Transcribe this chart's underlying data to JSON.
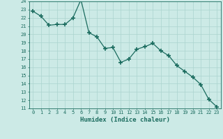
{
  "x": [
    0,
    1,
    2,
    3,
    4,
    5,
    6,
    7,
    8,
    9,
    10,
    11,
    12,
    13,
    14,
    15,
    16,
    17,
    18,
    19,
    20,
    21,
    22,
    23
  ],
  "y": [
    22.8,
    22.2,
    21.1,
    21.2,
    21.2,
    22.0,
    24.2,
    20.2,
    19.7,
    18.3,
    18.4,
    16.6,
    17.0,
    18.2,
    18.5,
    18.9,
    18.0,
    17.4,
    16.2,
    15.5,
    14.8,
    13.9,
    12.1,
    11.2
  ],
  "line_color": "#1a6b5e",
  "marker": "+",
  "marker_size": 4,
  "bg_color": "#cceae6",
  "grid_color": "#aad4ce",
  "xlabel": "Humidex (Indice chaleur)",
  "ylim": [
    11,
    24
  ],
  "xlim": [
    -0.5,
    23.5
  ],
  "yticks": [
    11,
    12,
    13,
    14,
    15,
    16,
    17,
    18,
    19,
    20,
    21,
    22,
    23,
    24
  ],
  "xticks": [
    0,
    1,
    2,
    3,
    4,
    5,
    6,
    7,
    8,
    9,
    10,
    11,
    12,
    13,
    14,
    15,
    16,
    17,
    18,
    19,
    20,
    21,
    22,
    23
  ],
  "tick_fontsize": 5,
  "label_fontsize": 6.5,
  "linewidth": 0.9,
  "marker_linewidth": 1.2
}
